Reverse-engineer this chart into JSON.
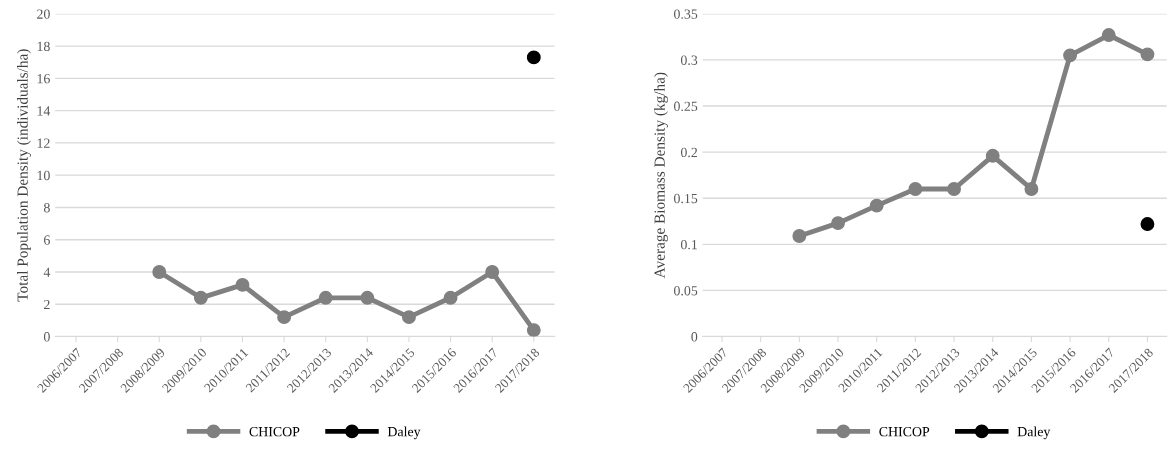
{
  "chart_data": [
    {
      "type": "line",
      "ylabel": "Total Population Density (individuals/ha)",
      "categories": [
        "2006/2007",
        "2007/2008",
        "2008/2009",
        "2009/2010",
        "2010/2011",
        "2011/2012",
        "2012/2013",
        "2013/2014",
        "2014/2015",
        "2015/2016",
        "2016/2017",
        "2017/2018"
      ],
      "series": [
        {
          "name": "CHICOP",
          "color": "#808080",
          "values": [
            null,
            null,
            4,
            2.4,
            3.2,
            1.2,
            2.4,
            2.4,
            1.2,
            2.4,
            4,
            0.4
          ]
        },
        {
          "name": "Daley",
          "color": "#000000",
          "values": [
            null,
            null,
            null,
            null,
            null,
            null,
            null,
            null,
            null,
            null,
            null,
            17.3
          ]
        }
      ],
      "ylim": [
        0,
        20
      ],
      "yticks": [
        0,
        2,
        4,
        6,
        8,
        10,
        12,
        14,
        16,
        18,
        20
      ],
      "grid": "y",
      "legend": "bottom",
      "marker": "circle"
    },
    {
      "type": "line",
      "ylabel": "Average Biomass Density (kg/ha)",
      "categories": [
        "2006/2007",
        "2007/2008",
        "2008/2009",
        "2009/2010",
        "2010/2011",
        "2011/2012",
        "2012/2013",
        "2013/2014",
        "2014/2015",
        "2015/2016",
        "2016/2017",
        "2017/2018"
      ],
      "series": [
        {
          "name": "CHICOP",
          "color": "#808080",
          "values": [
            null,
            null,
            0.109,
            0.123,
            0.142,
            0.16,
            0.16,
            0.196,
            0.16,
            0.305,
            0.327,
            0.306
          ]
        },
        {
          "name": "Daley",
          "color": "#000000",
          "values": [
            null,
            null,
            null,
            null,
            null,
            null,
            null,
            null,
            null,
            null,
            null,
            0.122
          ]
        }
      ],
      "ylim": [
        0,
        0.35
      ],
      "yticks": [
        0,
        0.05,
        0.1,
        0.15,
        0.2,
        0.25,
        0.3,
        0.35
      ],
      "grid": "y",
      "legend": "bottom",
      "marker": "circle"
    }
  ]
}
